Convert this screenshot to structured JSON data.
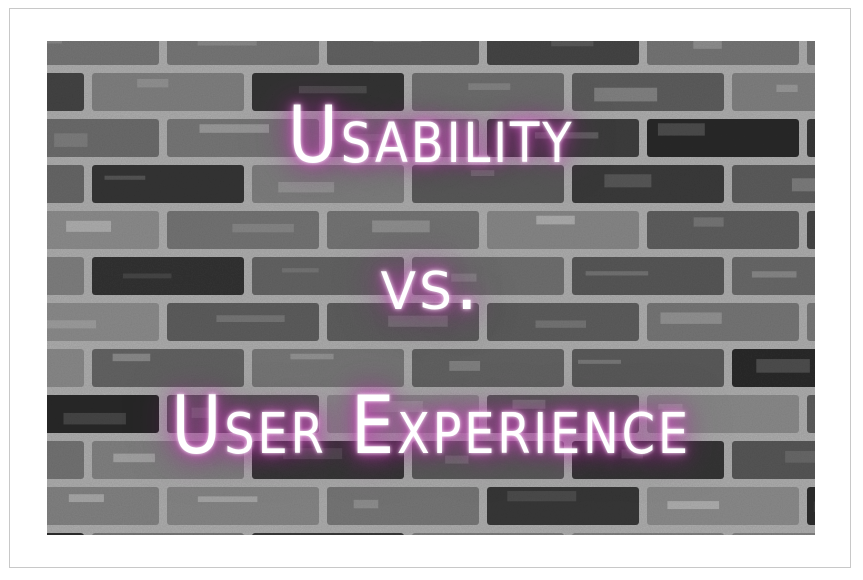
{
  "image": {
    "line_1": "Usability",
    "line_2": "vs.",
    "line_3": "User Experience"
  },
  "colors": {
    "glow": "#c23cb0",
    "text": "#ffffff",
    "brick_dark": "#3a3a3a",
    "brick_light": "#8a8a8a",
    "mortar": "#9e9e9e",
    "frame_border": "#c8c8c8"
  }
}
